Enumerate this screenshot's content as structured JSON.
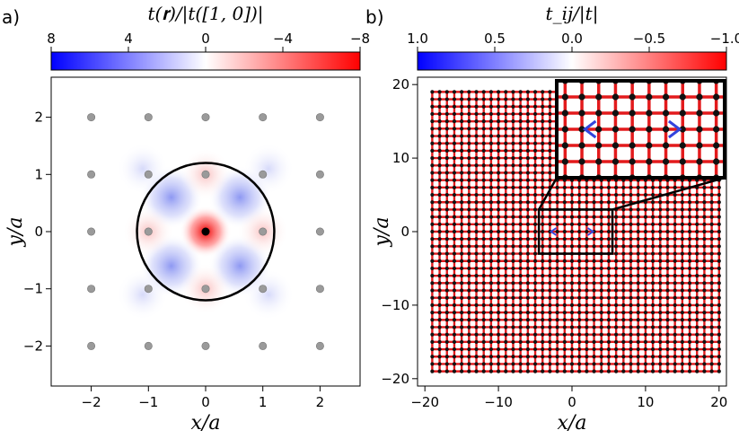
{
  "chart_data": [
    {
      "type": "heatmap",
      "panel_label": "a)",
      "colorbar": {
        "title": "t(𝐫)/|t([1, 0])|",
        "ticks": [
          8,
          4,
          0,
          -4,
          -8
        ],
        "tick_labels": [
          "8",
          "4",
          "0",
          "−4",
          "−8"
        ],
        "colormap": "bwr_reversed",
        "range": [
          8,
          -8
        ]
      },
      "xlabel": "x/a",
      "ylabel": "y/a",
      "xlim": [
        -2.7,
        2.7
      ],
      "ylim": [
        -2.7,
        2.7
      ],
      "xticks": [
        -2,
        -1,
        0,
        1,
        2
      ],
      "xtick_labels": [
        "−2",
        "−1",
        "0",
        "1",
        "2"
      ],
      "yticks": [
        -2,
        -1,
        0,
        1,
        2
      ],
      "ytick_labels": [
        "−2",
        "−1",
        "0",
        "1",
        "2"
      ],
      "lattice_sites": {
        "x": [
          -2,
          -1,
          0,
          1,
          2
        ],
        "y": [
          -2,
          -1,
          0,
          1,
          2
        ],
        "color": "#9a9a9a"
      },
      "center_site": {
        "x": 0,
        "y": 0,
        "color": "#000000"
      },
      "cutoff_circle": {
        "center": [
          0,
          0
        ],
        "radius": 1.2,
        "color": "#000000"
      },
      "features": [
        {
          "kind": "peak",
          "x": 0,
          "y": 0,
          "value": -8
        },
        {
          "kind": "lobe",
          "x": 0.6,
          "y": 0.6,
          "value": 3.5
        },
        {
          "kind": "lobe",
          "x": -0.6,
          "y": 0.6,
          "value": 3.5
        },
        {
          "kind": "lobe",
          "x": 0.6,
          "y": -0.6,
          "value": 3.5
        },
        {
          "kind": "lobe",
          "x": -0.6,
          "y": -0.6,
          "value": 3.5
        },
        {
          "kind": "lobe",
          "x": 1.0,
          "y": 0,
          "value": -1.5
        },
        {
          "kind": "lobe",
          "x": -1.0,
          "y": 0,
          "value": -1.5
        },
        {
          "kind": "lobe",
          "x": 0,
          "y": 1.0,
          "value": -1.5
        },
        {
          "kind": "lobe",
          "x": 0,
          "y": -1.0,
          "value": -1.5
        },
        {
          "kind": "lobe",
          "x": 1.1,
          "y": 1.1,
          "value": 1.2
        },
        {
          "kind": "lobe",
          "x": -1.1,
          "y": 1.1,
          "value": 1.2
        },
        {
          "kind": "lobe",
          "x": 1.1,
          "y": -1.1,
          "value": 1.2
        },
        {
          "kind": "lobe",
          "x": -1.1,
          "y": -1.1,
          "value": 1.2
        }
      ]
    },
    {
      "type": "scatter",
      "panel_label": "b)",
      "colorbar": {
        "title": "t_ij/|t|",
        "ticks": [
          1.0,
          0.5,
          0.0,
          -0.5,
          -1.0
        ],
        "tick_labels": [
          "1.0",
          "0.5",
          "0.0",
          "−0.5",
          "−1.0"
        ],
        "colormap": "bwr_reversed",
        "range": [
          1.0,
          -1.0
        ]
      },
      "xlabel": "x/a",
      "ylabel": "y/a",
      "xlim": [
        -21,
        21
      ],
      "ylim": [
        -21,
        21
      ],
      "xticks": [
        -20,
        -10,
        0,
        10,
        20
      ],
      "xtick_labels": [
        "−20",
        "−10",
        "0",
        "10",
        "20"
      ],
      "yticks": [
        -20,
        -10,
        0,
        10,
        20
      ],
      "ytick_labels": [
        "−20",
        "−10",
        "0",
        "10",
        "20"
      ],
      "lattice": {
        "x_range": [
          -19,
          20
        ],
        "y_range": [
          -19,
          19
        ],
        "spacing": 1,
        "site_color": "#111111",
        "bond_color": "#e31a1c",
        "bond_value": -1.0
      },
      "defect_bonds": [
        {
          "x": -2.5,
          "y": 0,
          "orientation": "left",
          "color": "#3344dd",
          "value": 0.8
        },
        {
          "x": 2.5,
          "y": 0,
          "orientation": "right",
          "color": "#3344dd",
          "value": 0.8
        }
      ],
      "zoom_region": {
        "x": [
          -4.5,
          5.5
        ],
        "y": [
          -3,
          3
        ]
      }
    }
  ]
}
